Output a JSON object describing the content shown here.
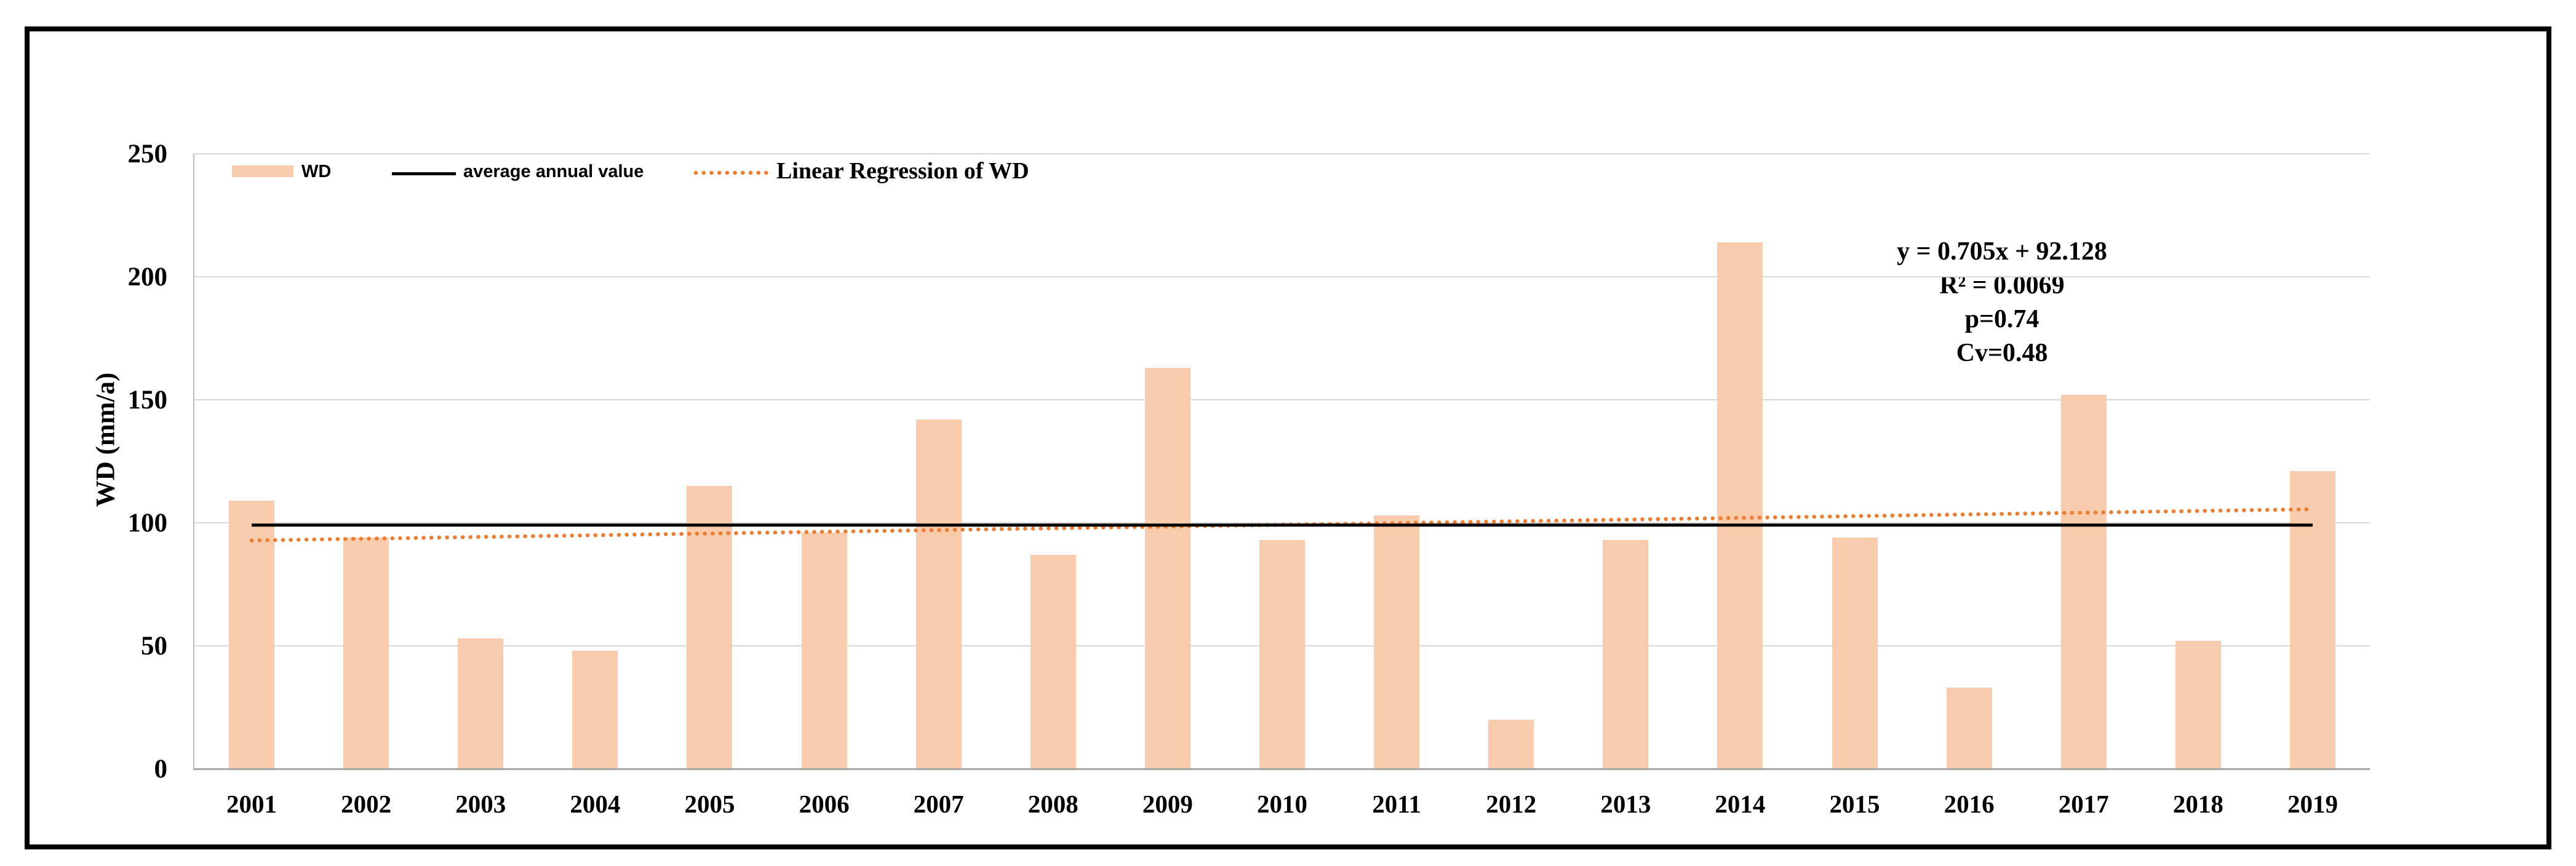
{
  "figure": {
    "y_axis": {
      "title": "WD (mm/a)"
    },
    "annotation": {
      "equation": "y = 0.705x + 92.128",
      "r_squared": "R² = 0.0069",
      "p_value": "p=0.74",
      "cv": "Cv=0.48"
    }
  },
  "colors": {
    "bar": "#F8CBAD",
    "average_line": "#000000",
    "regression_line": "#ED7D31",
    "gridline": "#D9D9D9",
    "y_axis_line": "#BFBFBF",
    "x_axis_line": "#A6A6A6",
    "frame": "#000000"
  },
  "chart_data": {
    "type": "bar",
    "title": "",
    "xlabel": "",
    "ylabel": "WD (mm/a)",
    "ylim": [
      0,
      250
    ],
    "y_ticks": [
      0,
      50,
      100,
      150,
      200,
      250
    ],
    "grid": true,
    "legend_position": "top-left",
    "categories": [
      "2001",
      "2002",
      "2003",
      "2004",
      "2005",
      "2006",
      "2007",
      "2008",
      "2009",
      "2010",
      "2011",
      "2012",
      "2013",
      "2014",
      "2015",
      "2016",
      "2017",
      "2018",
      "2019"
    ],
    "series": [
      {
        "name": "WD",
        "type": "bar",
        "color": "#F8CBAD",
        "values": [
          109,
          94,
          53,
          48,
          115,
          96,
          142,
          87,
          163,
          93,
          103,
          20,
          93,
          214,
          94,
          33,
          152,
          52,
          121
        ]
      },
      {
        "name": "average annual value",
        "type": "line",
        "color": "#000000",
        "value": 99.05
      },
      {
        "name": "Linear Regression of WD",
        "type": "dotted-line",
        "color": "#ED7D31",
        "slope": 0.705,
        "intercept": 92.128
      }
    ],
    "annotations": [
      "y = 0.705x + 92.128",
      "R² = 0.0069",
      "p=0.74",
      "Cv=0.48"
    ]
  }
}
